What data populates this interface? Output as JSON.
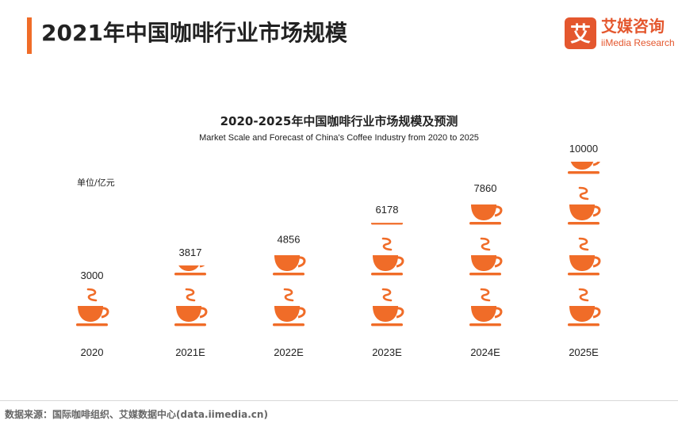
{
  "header": {
    "title": "2021年中国咖啡行业市场规模",
    "logo_cn": "艾媒咨询",
    "logo_en": "iiMedia Research",
    "logo_glyph": "艾"
  },
  "chart_data": {
    "type": "bar",
    "title": "2020-2025年中国咖啡行业市场规模及预测",
    "subtitle": "Market Scale and Forecast of China's Coffee Industry from 2020 to 2025",
    "unit_label": "单位/亿元",
    "categories": [
      "2020",
      "2021E",
      "2022E",
      "2023E",
      "2024E",
      "2025E"
    ],
    "values": [
      3000,
      3817,
      4856,
      6178,
      7860,
      10000
    ],
    "value_labels": [
      "3000",
      "3817",
      "4856",
      "6178",
      "7860",
      "10000"
    ],
    "units_per_icon": 3000,
    "icon": "coffee-cup-icon",
    "color": "#f06c28"
  },
  "footer": {
    "source": "数据来源：国际咖啡组织、艾媒数据中心(data.iimedia.cn)"
  }
}
